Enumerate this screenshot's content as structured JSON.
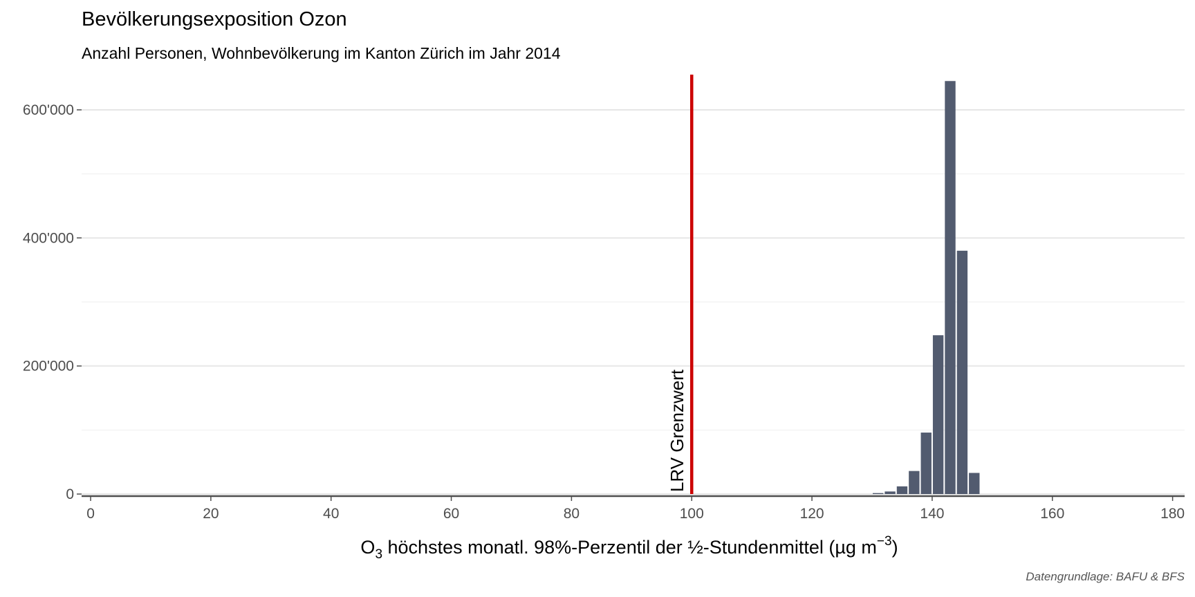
{
  "chart_data": {
    "type": "bar",
    "title": "Bevölkerungsexposition Ozon",
    "subtitle": "Anzahl Personen, Wohnbevölkerung im Kanton Zürich im Jahr 2014",
    "xlabel": {
      "prefix": "O",
      "subscript": "3",
      "main": " höchstes monatl. 98%-Perzentil der ½-Stundenmittel (µg m",
      "superscript": "−3",
      "suffix": ")"
    },
    "ylabel": "",
    "caption": "Datengrundlage: BAFU & BFS",
    "xlim": [
      -1.5,
      182
    ],
    "ylim": [
      0,
      655000
    ],
    "x_ticks": [
      {
        "value": 0,
        "label": "0"
      },
      {
        "value": 20,
        "label": "20"
      },
      {
        "value": 40,
        "label": "40"
      },
      {
        "value": 60,
        "label": "60"
      },
      {
        "value": 80,
        "label": "80"
      },
      {
        "value": 100,
        "label": "100"
      },
      {
        "value": 120,
        "label": "120"
      },
      {
        "value": 140,
        "label": "140"
      },
      {
        "value": 160,
        "label": "160"
      },
      {
        "value": 180,
        "label": "180"
      }
    ],
    "y_ticks": [
      {
        "value": 0,
        "label": "0"
      },
      {
        "value": 200000,
        "label": "200'000"
      },
      {
        "value": 400000,
        "label": "400'000"
      },
      {
        "value": 600000,
        "label": "600'000"
      }
    ],
    "y_minor_ticks": [
      100000,
      300000,
      500000
    ],
    "grid": "horizontal",
    "bin_width": 2,
    "bins": [
      {
        "x": 131,
        "value": 1500
      },
      {
        "x": 133,
        "value": 4000
      },
      {
        "x": 135,
        "value": 12000
      },
      {
        "x": 137,
        "value": 36000
      },
      {
        "x": 139,
        "value": 96000
      },
      {
        "x": 141,
        "value": 248000
      },
      {
        "x": 143,
        "value": 645000
      },
      {
        "x": 145,
        "value": 380000
      },
      {
        "x": 147,
        "value": 33000
      }
    ],
    "reference_line": {
      "x": 100,
      "label": "LRV Grenzwert"
    },
    "colors": {
      "bar": "#525b6f",
      "reference_line": "#cc0000",
      "grid": "#e6e6e6",
      "axis": "#4d4d4d"
    }
  }
}
